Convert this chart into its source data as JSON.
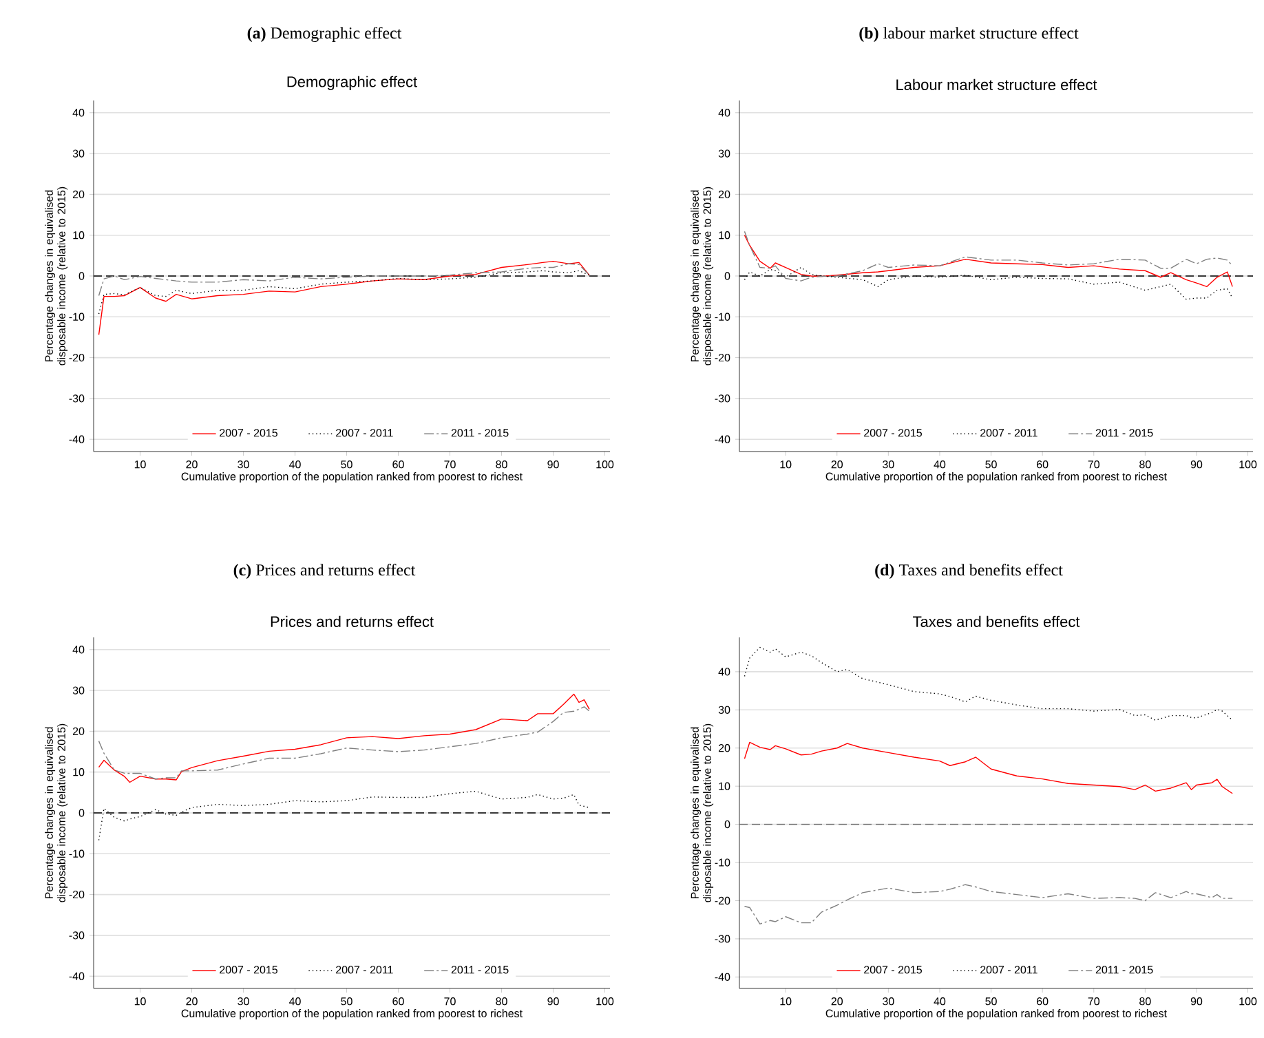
{
  "chart_data": [
    {
      "type": "line",
      "title": "**(a)** Demographic effect",
      "subtitle": "Demographic effect",
      "xlabel": "Cumulative proportion of the population ranked from poorest to richest",
      "ylabel": "Percentage changes in equivalised disposable income (relative to 2015)",
      "xlim": [
        1,
        101
      ],
      "ylim": [
        -43,
        43
      ],
      "xticks": [
        10,
        20,
        30,
        40,
        50,
        60,
        70,
        80,
        90,
        100
      ],
      "yticks": [
        -40,
        -30,
        -20,
        -10,
        0,
        10,
        20,
        30,
        40
      ],
      "grid": "y",
      "legend": "bottom",
      "ref_lines": [
        {
          "axis": "y",
          "value": 0,
          "color": "#000000",
          "line_style": "dashed"
        }
      ],
      "x": [
        2,
        3,
        5,
        7,
        10,
        13,
        15,
        17,
        20,
        25,
        30,
        35,
        40,
        45,
        50,
        55,
        60,
        65,
        70,
        75,
        80,
        85,
        88,
        90,
        93,
        95,
        97
      ],
      "series": [
        {
          "name": "2007 - 2015",
          "color": "#ff0000",
          "line_style": "solid",
          "values": [
            -14.4,
            -5,
            -5,
            -4.8,
            -2.8,
            -5.4,
            -6.2,
            -4.5,
            -5.6,
            -4.8,
            -4.5,
            -3.7,
            -3.9,
            -2.6,
            -2,
            -1.2,
            -0.7,
            -0.9,
            0,
            0.4,
            2.1,
            2.8,
            3.3,
            3.6,
            3,
            3.3,
            0.2
          ]
        },
        {
          "name": "2007 - 2011",
          "color": "#000000",
          "line_style": "dotted",
          "values": [
            -9.3,
            -4.5,
            -4.3,
            -4.6,
            -2.8,
            -4.8,
            -5,
            -3.5,
            -4.3,
            -3.5,
            -3.5,
            -2.6,
            -3.1,
            -2,
            -1.5,
            -1.2,
            -0.6,
            -0.9,
            -0.7,
            -0.3,
            0.8,
            1,
            1.3,
            1,
            0.8,
            1.3,
            0.2
          ]
        },
        {
          "name": "2011 - 2015",
          "color": "#808080",
          "line_style": "dashed",
          "values": [
            -4.8,
            -0.7,
            0,
            -0.9,
            -0.1,
            -0.6,
            -0.9,
            -1.2,
            -1.5,
            -1.5,
            -0.9,
            -1.2,
            -0.3,
            -0.7,
            -0.3,
            0,
            0,
            0,
            0.2,
            0.8,
            1,
            1.9,
            2.1,
            2.1,
            3,
            2.8,
            0.2
          ]
        }
      ]
    },
    {
      "type": "line",
      "title": "**(b)** labour market structure effect",
      "subtitle": "Labour market structure effect",
      "xlabel": "Cumulative proportion of the population ranked from poorest to richest",
      "ylabel": "Percentage changes in equivalised disposable income (relative to 2015)",
      "xlim": [
        1,
        101
      ],
      "ylim": [
        -43,
        43
      ],
      "xticks": [
        10,
        20,
        30,
        40,
        50,
        60,
        70,
        80,
        90,
        100
      ],
      "yticks": [
        -40,
        -30,
        -20,
        -10,
        0,
        10,
        20,
        30,
        40
      ],
      "grid": "y",
      "legend": "bottom",
      "ref_lines": [
        {
          "axis": "y",
          "value": 0,
          "color": "#000000",
          "line_style": "dashed"
        }
      ],
      "x": [
        2,
        3,
        5,
        7,
        8,
        10,
        13,
        15,
        17,
        20,
        25,
        28,
        30,
        35,
        40,
        45,
        50,
        55,
        60,
        65,
        70,
        75,
        80,
        83,
        85,
        88,
        90,
        92,
        94,
        96,
        97
      ],
      "series": [
        {
          "name": "2007 - 2015",
          "color": "#ff0000",
          "line_style": "solid",
          "values": [
            10,
            7.5,
            3.6,
            1.9,
            3.2,
            2.1,
            0.4,
            0,
            -0.1,
            0.2,
            0.8,
            1,
            1.3,
            2.1,
            2.5,
            4.1,
            3.2,
            3,
            2.8,
            2.1,
            2.5,
            1.7,
            1.3,
            -0.3,
            0.8,
            -0.9,
            -1.7,
            -2.6,
            -0.3,
            1,
            -2.6
          ]
        },
        {
          "name": "2007 - 2011",
          "color": "#000000",
          "line_style": "dotted",
          "values": [
            -0.9,
            1,
            0,
            1.6,
            1.3,
            -0.3,
            2.1,
            0.4,
            0,
            -0.3,
            -0.9,
            -2.6,
            -0.9,
            0,
            -0.3,
            0.2,
            -0.9,
            -0.3,
            -0.6,
            -0.7,
            -2,
            -1.5,
            -3.5,
            -2.6,
            -2,
            -5.7,
            -5.4,
            -5.4,
            -3.5,
            -3.1,
            -5.4
          ]
        },
        {
          "name": "2011 - 2015",
          "color": "#808080",
          "line_style": "dashed",
          "values": [
            10.9,
            7.5,
            2.1,
            1.9,
            2.5,
            -0.6,
            -1.2,
            -0.3,
            -0.1,
            0,
            1.3,
            3,
            2.1,
            2.7,
            2.5,
            4.7,
            3.9,
            3.9,
            3.2,
            2.7,
            3,
            4.1,
            3.9,
            1.9,
            1.9,
            4.1,
            3,
            4.1,
            4.4,
            3.9,
            2.5
          ]
        }
      ]
    },
    {
      "type": "line",
      "title": "**(c)** Prices and returns effect",
      "subtitle": "Prices and returns effect",
      "xlabel": "Cumulative proportion of the population ranked from poorest to richest",
      "ylabel": "Percentage changes in equivalised disposable income (relative to 2015)",
      "xlim": [
        1,
        101
      ],
      "ylim": [
        -43,
        43
      ],
      "xticks": [
        10,
        20,
        30,
        40,
        50,
        60,
        70,
        80,
        90,
        100
      ],
      "yticks": [
        -40,
        -30,
        -20,
        -10,
        0,
        10,
        20,
        30,
        40
      ],
      "grid": "y",
      "legend": "bottom",
      "ref_lines": [
        {
          "axis": "y",
          "value": 0,
          "color": "#000000",
          "line_style": "dashed"
        }
      ],
      "x": [
        2,
        3,
        5,
        7,
        8,
        10,
        13,
        15,
        17,
        18,
        20,
        25,
        30,
        35,
        40,
        45,
        50,
        55,
        60,
        65,
        70,
        75,
        80,
        85,
        87,
        90,
        92,
        94,
        95,
        96,
        97
      ],
      "series": [
        {
          "name": "2007 - 2015",
          "color": "#ff0000",
          "line_style": "solid",
          "values": [
            11.2,
            12.9,
            10.5,
            8.9,
            7.5,
            9,
            8.3,
            8.3,
            8.1,
            10.1,
            11.1,
            12.8,
            13.9,
            15.1,
            15.6,
            16.7,
            18.4,
            18.7,
            18.2,
            18.9,
            19.3,
            20.4,
            23,
            22.6,
            24.3,
            24.3,
            26.6,
            29.1,
            27.1,
            27.7,
            25.4
          ]
        },
        {
          "name": "2007 - 2011",
          "color": "#000000",
          "line_style": "dotted",
          "values": [
            -6.7,
            1.1,
            -1.1,
            -2,
            -1.5,
            -0.9,
            0.8,
            -0.3,
            -0.6,
            0.2,
            1.3,
            2.1,
            1.8,
            2.1,
            3,
            2.7,
            3,
            3.9,
            3.8,
            3.8,
            4.7,
            5.3,
            3.4,
            3.8,
            4.5,
            3.4,
            3.6,
            4.5,
            1.9,
            1.6,
            1.3
          ]
        },
        {
          "name": "2011 - 2015",
          "color": "#808080",
          "line_style": "dashed",
          "values": [
            17.6,
            14.6,
            10.5,
            9.7,
            9.7,
            9.7,
            8.3,
            8.6,
            8.6,
            10.3,
            10.3,
            10.5,
            12,
            13.4,
            13.4,
            14.5,
            15.9,
            15.4,
            15,
            15.4,
            16.2,
            17,
            18.4,
            19.3,
            19.8,
            22.4,
            24.6,
            24.9,
            25.4,
            26,
            24.9
          ]
        }
      ]
    },
    {
      "type": "line",
      "title": "**(d)** Taxes and benefits effect",
      "subtitle": "Taxes and benefits effect",
      "xlabel": "Cumulative proportion of the population ranked from poorest to richest",
      "ylabel": "Percentage changes in equivalised disposable income (relative to 2015)",
      "xlim": [
        1,
        101
      ],
      "ylim": [
        -43,
        49
      ],
      "xticks": [
        10,
        20,
        30,
        40,
        50,
        60,
        70,
        80,
        90,
        100
      ],
      "yticks": [
        -40,
        -30,
        -20,
        -10,
        0,
        10,
        20,
        30,
        40
      ],
      "grid": "y",
      "legend": "bottom",
      "ref_lines": [
        {
          "axis": "y",
          "value": 0,
          "color": "#707070",
          "line_style": "dashed"
        }
      ],
      "x": [
        2,
        3,
        5,
        7,
        8,
        10,
        13,
        15,
        17,
        20,
        22,
        25,
        30,
        35,
        40,
        42,
        45,
        47,
        50,
        55,
        60,
        65,
        70,
        75,
        78,
        80,
        82,
        85,
        88,
        89,
        90,
        93,
        94,
        95,
        97
      ],
      "series": [
        {
          "name": "2007 - 2015",
          "color": "#ff0000",
          "line_style": "solid",
          "values": [
            17.2,
            21.5,
            20.2,
            19.6,
            20.6,
            19.8,
            18.2,
            18.4,
            19.2,
            20,
            21.2,
            20,
            18.8,
            17.6,
            16.6,
            15.4,
            16.4,
            17.6,
            14.5,
            12.7,
            11.9,
            10.7,
            10.3,
            9.9,
            9.1,
            10.3,
            8.7,
            9.5,
            10.9,
            9.1,
            10.3,
            10.9,
            11.8,
            9.9,
            8.1
          ]
        },
        {
          "name": "2007 - 2011",
          "color": "#000000",
          "line_style": "dotted",
          "values": [
            38.8,
            43.6,
            46.4,
            45.1,
            46,
            43.9,
            45.1,
            44.2,
            42.4,
            40,
            40.6,
            38.2,
            36.6,
            34.8,
            34.2,
            33.5,
            32.1,
            33.6,
            32.5,
            31.3,
            30.3,
            30.3,
            29.7,
            30.1,
            28.5,
            28.7,
            27.3,
            28.5,
            28.5,
            28,
            27.9,
            29.3,
            30.1,
            29.7,
            27.3
          ]
        },
        {
          "name": "2011 - 2015",
          "color": "#808080",
          "line_style": "dashed",
          "values": [
            -21.5,
            -21.8,
            -26.1,
            -25.2,
            -25.5,
            -24.2,
            -25.8,
            -25.8,
            -23,
            -21.2,
            -19.8,
            -17.9,
            -16.7,
            -17.9,
            -17.6,
            -17,
            -15.8,
            -16.4,
            -17.6,
            -18.4,
            -19.2,
            -18.2,
            -19.4,
            -19.2,
            -19.4,
            -20,
            -17.9,
            -19.2,
            -17.6,
            -18.2,
            -18.2,
            -19.2,
            -18.4,
            -19.4,
            -19.4
          ]
        }
      ]
    }
  ]
}
